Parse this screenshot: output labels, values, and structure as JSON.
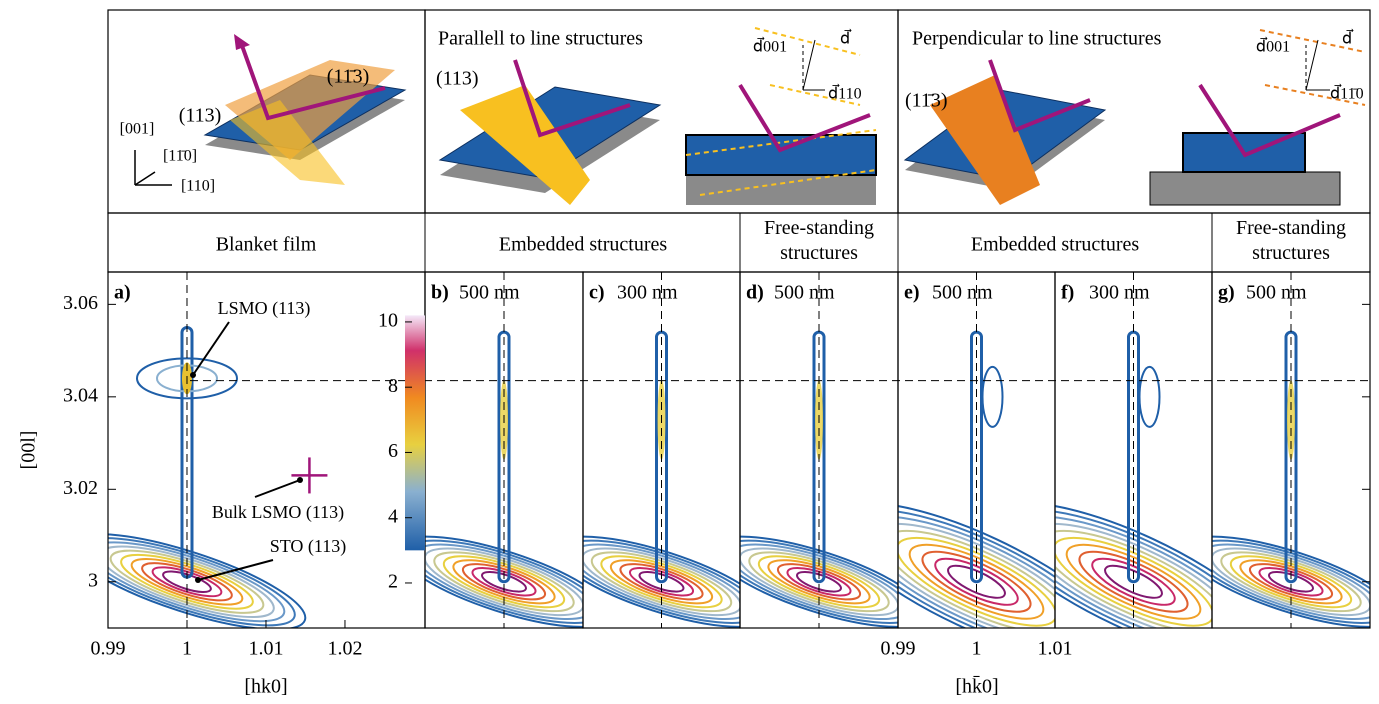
{
  "schematics": [
    {
      "labels": [
        "(113)",
        "(11̄3)",
        "[001]",
        "[11̄0]",
        "[110]"
      ]
    },
    {
      "title": "Parallell to line structures",
      "labels": [
        "(113)",
        "d⃗001",
        "d⃗",
        "d⃗110"
      ]
    },
    {
      "title": "Perpendicular to line structures",
      "labels": [
        "(11̄3)",
        "d⃗001",
        "d⃗",
        "d⃗11̄0"
      ]
    }
  ],
  "column_headers": [
    "Blanket film",
    "Embedded structures",
    "Free-standing structures",
    "Embedded structures",
    "Free-standing structures"
  ],
  "panels": [
    {
      "label": "a)"
    },
    {
      "label": "b)",
      "size": "500 nm"
    },
    {
      "label": "c)",
      "size": "300 nm"
    },
    {
      "label": "d)",
      "size": "500 nm"
    },
    {
      "label": "e)",
      "size": "500 nm"
    },
    {
      "label": "f)",
      "size": "300 nm"
    },
    {
      "label": "g)",
      "size": "500 nm"
    }
  ],
  "annotations": [
    "LSMO (113)",
    "Bulk LSMO (113)",
    "STO (113)"
  ],
  "y_axis": {
    "label": "[00l]",
    "lim": [
      2.99,
      3.067
    ],
    "ticks": [
      3,
      3.02,
      3.04,
      3.06
    ]
  },
  "x_axis_left": {
    "label": "[hk0]",
    "lim": [
      0.99,
      1.0276
    ],
    "ticks": [
      0.99,
      1,
      1.01,
      1.02
    ]
  },
  "x_axis_right": {
    "label": "[hk̄0]",
    "lim": [
      0.99,
      1.01
    ],
    "ticks": [
      0.99,
      1,
      1.01
    ]
  },
  "colorbar": {
    "lim": [
      0.62,
      11.53
    ],
    "ticks": [
      2,
      4,
      6,
      8,
      10
    ]
  },
  "reference_lines": {
    "x": 1,
    "y": 3.0435
  },
  "bulk_marker": {
    "x": 1.0155,
    "y": 3.023
  }
}
